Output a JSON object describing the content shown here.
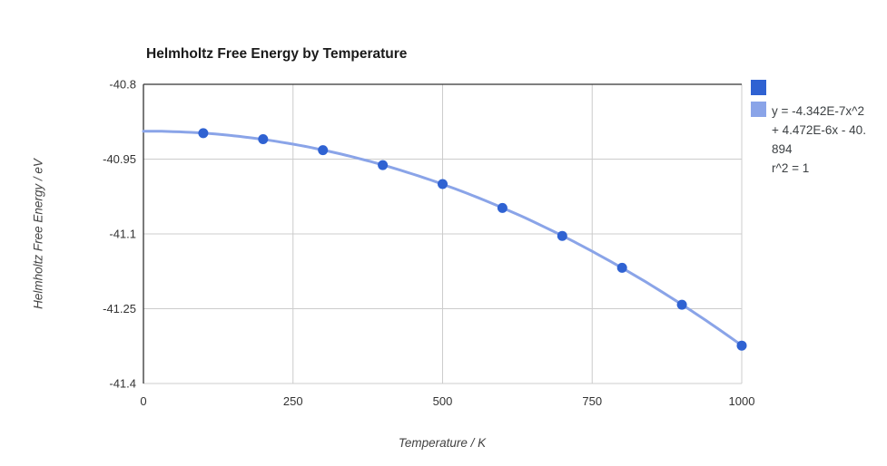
{
  "chart_data": {
    "type": "scatter",
    "title": "Helmholtz Free Energy by Temperature",
    "xlabel": "Temperature / K",
    "ylabel": "Helmholtz Free Energy / eV",
    "xlim": [
      0,
      1000
    ],
    "ylim": [
      -41.4,
      -40.8
    ],
    "x_ticks": [
      0,
      250,
      500,
      750,
      1000
    ],
    "x_tick_labels": [
      "0",
      "250",
      "500",
      "750",
      "1000"
    ],
    "y_ticks": [
      -40.8,
      -40.95,
      -41.1,
      -41.25,
      -41.4
    ],
    "y_tick_labels": [
      "-40.8",
      "-40.95",
      "-41.1",
      "-41.25",
      "-41.4"
    ],
    "grid": true,
    "legend_position": "right",
    "series": [
      {
        "name": "",
        "type": "points",
        "x": [
          100,
          200,
          300,
          400,
          500,
          600,
          700,
          800,
          900,
          1000
        ],
        "y": [
          -40.898,
          -40.91,
          -40.932,
          -40.962,
          -41.0,
          -41.048,
          -41.104,
          -41.168,
          -41.242,
          -41.324
        ]
      },
      {
        "name": "trendline",
        "type": "quadratic-fit",
        "coefficients": {
          "a": -4.342e-07,
          "b": 4.472e-06,
          "c": -40.894
        },
        "domain": [
          0,
          1000
        ],
        "equation": "y = -4.342E-7x^2 + 4.472E-6x - 40.894",
        "r_squared": "r^2 = 1"
      }
    ]
  },
  "legend": {
    "trendline_label_lines": [
      "y = -4.342E-7x^2",
      "+ 4.472E-6x - 40.",
      "894",
      "r^2 = 1"
    ]
  },
  "colors": {
    "point": "#2f62d2",
    "line": "#8aa4e8",
    "grid": "#cccccc",
    "axis": "#333333"
  }
}
